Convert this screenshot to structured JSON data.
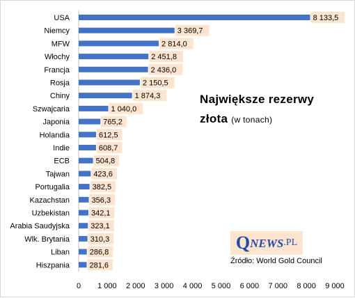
{
  "title": "Największe rezerwy złota",
  "title_line1": "Największe rezerwy",
  "title_line2": "złota",
  "unit_note": "(w tonach)",
  "source": "Źródło: World Gold Council",
  "logo_text": "QNEWS.PL",
  "colors": {
    "bar": "#4472c4",
    "label_bg": "#fce4cf",
    "logo": "#1f4aa8",
    "grid": "#d9d9d9"
  },
  "chart_data": {
    "type": "bar",
    "orientation": "horizontal",
    "categories": [
      "USA",
      "Niemcy",
      "MFW",
      "Włochy",
      "Francja",
      "Rosja",
      "Chiny",
      "Szwajcaria",
      "Japonia",
      "Holandia",
      "Indie",
      "ECB",
      "Tajwan",
      "Portugalia",
      "Kazachstan",
      "Uzbekistan",
      "Arabia Saudyjska",
      "Wlk. Brytania",
      "Liban",
      "Hiszpania"
    ],
    "values": [
      8133.5,
      3369.7,
      2814.0,
      2451.8,
      2436.0,
      2150.5,
      1874.3,
      1040.0,
      765.2,
      612.5,
      608.7,
      504.8,
      423.6,
      382.5,
      356.3,
      342.1,
      323.1,
      310.3,
      286.8,
      281.6
    ],
    "value_labels": [
      "8 133,5",
      "3 369,7",
      "2 814,0",
      "2 451,8",
      "2 436,0",
      "2 150,5",
      "1 874,3",
      "1 040,0",
      "765,2",
      "612,5",
      "608,7",
      "504,8",
      "423,6",
      "382,5",
      "356,3",
      "342,1",
      "323,1",
      "310,3",
      "286,8",
      "281,6"
    ],
    "xlim": [
      0,
      9000
    ],
    "x_ticks": [
      0,
      1000,
      2000,
      3000,
      4000,
      5000,
      6000,
      7000,
      8000,
      9000
    ],
    "x_tick_labels": [
      "0",
      "1 000",
      "2 000",
      "3 000",
      "4 000",
      "5 000",
      "6 000",
      "7 000",
      "8 000",
      "9 000"
    ],
    "grid": false,
    "legend": "none"
  }
}
